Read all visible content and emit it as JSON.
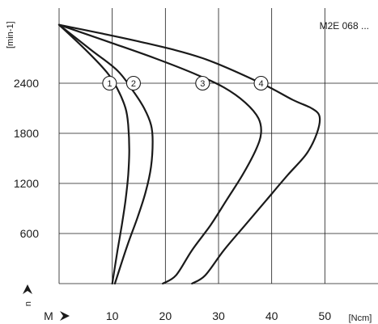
{
  "chart_data": {
    "type": "line",
    "title": "",
    "annotation": "M2E 068 ...",
    "xlabel": "M",
    "xunit": "[Ncm]",
    "ylabel": "n",
    "yunit": "[min-1]",
    "xlim": [
      0,
      60
    ],
    "ylim": [
      0,
      3300
    ],
    "x_ticks": [
      10,
      20,
      30,
      40,
      50
    ],
    "y_ticks": [
      600,
      1200,
      1800,
      2400
    ],
    "grid": true,
    "series": [
      {
        "name": "1",
        "points": [
          [
            0,
            3100
          ],
          [
            5,
            2800
          ],
          [
            9,
            2530
          ],
          [
            11,
            2330
          ],
          [
            12.5,
            2100
          ],
          [
            13,
            1900
          ],
          [
            13.2,
            1600
          ],
          [
            13,
            1300
          ],
          [
            12.5,
            1000
          ],
          [
            11.8,
            700
          ],
          [
            11,
            400
          ],
          [
            10,
            0
          ]
        ],
        "label_at": [
          9.5,
          2400
        ]
      },
      {
        "name": "2",
        "points": [
          [
            0,
            3100
          ],
          [
            6,
            2800
          ],
          [
            11,
            2550
          ],
          [
            14,
            2300
          ],
          [
            16,
            2100
          ],
          [
            17.3,
            1900
          ],
          [
            17.6,
            1700
          ],
          [
            17.3,
            1400
          ],
          [
            16.3,
            1100
          ],
          [
            14.8,
            800
          ],
          [
            12.8,
            450
          ],
          [
            10.5,
            0
          ]
        ],
        "label_at": [
          14,
          2400
        ]
      },
      {
        "name": "3",
        "points": [
          [
            0,
            3100
          ],
          [
            10,
            2880
          ],
          [
            18,
            2700
          ],
          [
            26,
            2500
          ],
          [
            31,
            2350
          ],
          [
            35,
            2170
          ],
          [
            37.5,
            1980
          ],
          [
            38,
            1800
          ],
          [
            37,
            1600
          ],
          [
            34.5,
            1300
          ],
          [
            31.5,
            1000
          ],
          [
            28.5,
            700
          ],
          [
            25,
            400
          ],
          [
            22,
            100
          ],
          [
            19.5,
            0
          ]
        ],
        "label_at": [
          27,
          2400
        ]
      },
      {
        "name": "4",
        "points": [
          [
            0,
            3100
          ],
          [
            15,
            2900
          ],
          [
            27,
            2700
          ],
          [
            38,
            2400
          ],
          [
            44,
            2200
          ],
          [
            47.5,
            2100
          ],
          [
            49,
            2000
          ],
          [
            48.5,
            1800
          ],
          [
            46.5,
            1550
          ],
          [
            43,
            1300
          ],
          [
            39,
            1000
          ],
          [
            35,
            700
          ],
          [
            31,
            400
          ],
          [
            27.5,
            100
          ],
          [
            25,
            0
          ]
        ],
        "label_at": [
          38,
          2400
        ]
      }
    ]
  }
}
